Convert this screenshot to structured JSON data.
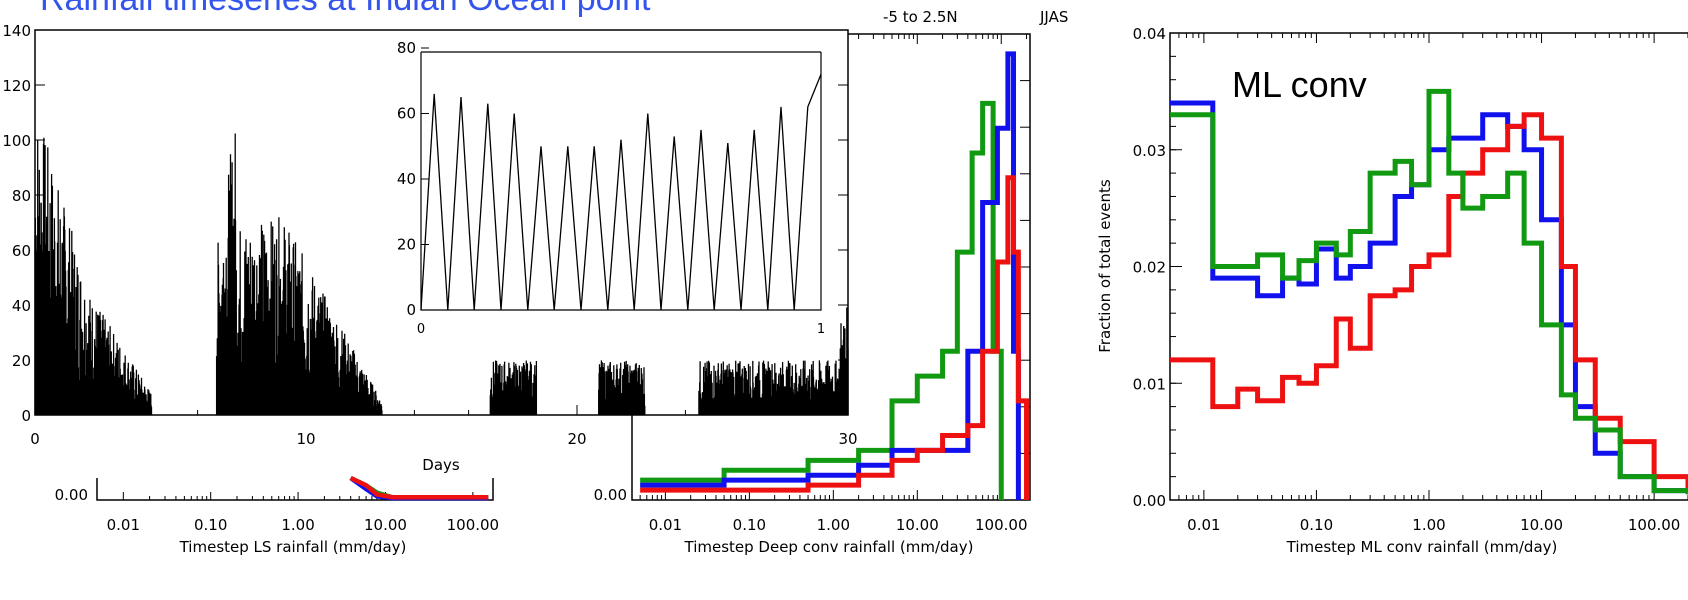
{
  "slide": {
    "title": "Rainfall timeseries at Indian Ocean point",
    "region_label": "-5 to 2.5N",
    "season_label": "JJAS",
    "title_color": "#3355ee"
  },
  "colors": {
    "red": "#ee1111",
    "blue": "#1111ee",
    "green": "#119911",
    "black": "#000000"
  },
  "chart_data": [
    {
      "id": "timeseries",
      "type": "bar",
      "xlabel": "Days",
      "ylabel": "",
      "xlim": [
        0,
        30
      ],
      "ylim": [
        0,
        140
      ],
      "xticks": [
        0,
        10,
        20,
        30
      ],
      "yticks": [
        0,
        20,
        40,
        60,
        80,
        100,
        120,
        140
      ],
      "note": "timestep rainfall, dense vertical spikes",
      "segments": [
        {
          "x0": 0.0,
          "x1": 2.0,
          "y0": 115,
          "y1": 45
        },
        {
          "x0": 2.0,
          "x1": 4.3,
          "y0": 45,
          "y1": 8
        },
        {
          "x0": 6.7,
          "x1": 7.4,
          "y0": 60,
          "y1": 108
        },
        {
          "x0": 7.4,
          "x1": 9.0,
          "y0": 70,
          "y1": 72
        },
        {
          "x0": 9.0,
          "x1": 12.8,
          "y0": 75,
          "y1": 5
        },
        {
          "x0": 16.8,
          "x1": 18.5,
          "y0": 20,
          "y1": 20
        },
        {
          "x0": 20.8,
          "x1": 22.5,
          "y0": 20,
          "y1": 20
        },
        {
          "x0": 24.5,
          "x1": 29.7,
          "y0": 20,
          "y1": 20
        },
        {
          "x0": 29.7,
          "x1": 30.0,
          "y0": 35,
          "y1": 40
        }
      ]
    },
    {
      "id": "inset",
      "type": "line",
      "xlim": [
        0,
        1
      ],
      "ylim": [
        0,
        80
      ],
      "xticks": [
        0,
        1
      ],
      "yticks": [
        0,
        20,
        40,
        60,
        80
      ],
      "x": [
        0,
        0.033,
        0.067,
        0.1,
        0.133,
        0.167,
        0.2,
        0.233,
        0.267,
        0.3,
        0.333,
        0.367,
        0.4,
        0.433,
        0.467,
        0.5,
        0.533,
        0.567,
        0.6,
        0.633,
        0.667,
        0.7,
        0.733,
        0.767,
        0.8,
        0.833,
        0.867,
        0.9,
        0.933,
        0.967,
        1.0
      ],
      "y": [
        0,
        66,
        0,
        65,
        0,
        63,
        0,
        60,
        0,
        50,
        0,
        50,
        0,
        50,
        0,
        52,
        0,
        60,
        0,
        53,
        0,
        55,
        0,
        51,
        0,
        55,
        0,
        62,
        0,
        62,
        72
      ]
    },
    {
      "id": "ls_hist",
      "type": "line",
      "xlabel": "Timestep LS rainfall (mm/day)",
      "xscale": "log",
      "xticks": [
        0.01,
        0.1,
        1,
        10,
        100
      ],
      "xticklabels": [
        "0.01",
        "0.10",
        "1.00",
        "10.00",
        "100.00"
      ],
      "yticks": [
        0.0
      ],
      "yticklabels": [
        "0.00"
      ],
      "ylim": [
        0,
        0.04
      ],
      "series": [
        {
          "color": "red",
          "x": [
            4,
            6,
            8,
            12,
            20,
            50,
            120,
            150
          ],
          "y": [
            0.012,
            0.008,
            0.003,
            0.0015,
            0.0015,
            0.0015,
            0.0015,
            0.0015
          ]
        },
        {
          "color": "blue",
          "x": [
            4,
            6,
            8,
            12,
            20,
            50,
            120,
            150
          ],
          "y": [
            0.012,
            0.006,
            0.002,
            0.001,
            0.001,
            0.001,
            0.001,
            0.001
          ]
        },
        {
          "color": "green",
          "x": [
            4,
            6,
            8,
            12,
            20,
            50,
            120,
            150
          ],
          "y": [
            0.012,
            0.008,
            0.004,
            0.0015,
            0.0015,
            0.0015,
            0.0015,
            0.0015
          ]
        }
      ]
    },
    {
      "id": "deep_hist",
      "type": "line",
      "xlabel": "Timestep Deep conv rainfall (mm/day)",
      "xscale": "log",
      "xticks": [
        0.01,
        0.1,
        1,
        10,
        100
      ],
      "xticklabels": [
        "0.01",
        "0.10",
        "1.00",
        "10.00",
        "100.00"
      ],
      "yticks": [
        0.0
      ],
      "yticklabels": [
        "0.00"
      ],
      "ylim": [
        0,
        0.1
      ],
      "series": [
        {
          "color": "red",
          "x": [
            0.005,
            0.05,
            0.5,
            2,
            5,
            10,
            20,
            40,
            60,
            90,
            120,
            140,
            160,
            200
          ],
          "y": [
            0.002,
            0.002,
            0.003,
            0.005,
            0.008,
            0.01,
            0.013,
            0.015,
            0.03,
            0.048,
            0.065,
            0.05,
            0.02,
            0.0
          ]
        },
        {
          "color": "blue",
          "x": [
            0.005,
            0.05,
            0.5,
            2,
            5,
            10,
            20,
            40,
            60,
            90,
            120,
            140,
            160
          ],
          "y": [
            0.003,
            0.004,
            0.005,
            0.007,
            0.01,
            0.01,
            0.01,
            0.03,
            0.06,
            0.075,
            0.09,
            0.03,
            0.0
          ]
        },
        {
          "color": "green",
          "x": [
            0.005,
            0.05,
            0.5,
            2,
            5,
            10,
            20,
            30,
            45,
            60,
            80,
            100
          ],
          "y": [
            0.004,
            0.006,
            0.008,
            0.01,
            0.02,
            0.025,
            0.03,
            0.05,
            0.07,
            0.08,
            0.03,
            0.0
          ]
        }
      ]
    },
    {
      "id": "ml_hist",
      "type": "line",
      "annotation": "ML conv",
      "xlabel": "Timestep ML conv rainfall (mm/day)",
      "ylabel": "Fraction of total events",
      "xscale": "log",
      "xlim": [
        0.005,
        200
      ],
      "ylim": [
        0,
        0.04
      ],
      "xticks": [
        0.01,
        0.1,
        1,
        10,
        100
      ],
      "xticklabels": [
        "0.01",
        "0.10",
        "1.00",
        "10.00",
        "100.00"
      ],
      "yticks": [
        0.0,
        0.01,
        0.02,
        0.03,
        0.04
      ],
      "yticklabels": [
        "0.00",
        "0.01",
        "0.02",
        "0.03",
        "0.04"
      ],
      "series": [
        {
          "color": "red",
          "x": [
            0.005,
            0.01,
            0.012,
            0.02,
            0.03,
            0.05,
            0.07,
            0.1,
            0.15,
            0.2,
            0.3,
            0.5,
            0.7,
            1.0,
            1.5,
            2,
            3,
            5,
            7,
            10,
            15,
            20,
            30,
            50,
            100,
            200
          ],
          "y": [
            0.012,
            0.012,
            0.008,
            0.0095,
            0.0085,
            0.0105,
            0.01,
            0.0115,
            0.0155,
            0.013,
            0.0175,
            0.018,
            0.02,
            0.021,
            0.026,
            0.028,
            0.03,
            0.032,
            0.033,
            0.031,
            0.02,
            0.012,
            0.007,
            0.005,
            0.002,
            0.0005
          ]
        },
        {
          "color": "blue",
          "x": [
            0.005,
            0.01,
            0.012,
            0.02,
            0.03,
            0.05,
            0.07,
            0.1,
            0.15,
            0.2,
            0.3,
            0.5,
            0.7,
            1.0,
            1.5,
            2,
            3,
            5,
            7,
            10,
            15,
            20,
            30,
            50,
            100,
            200
          ],
          "y": [
            0.034,
            0.034,
            0.019,
            0.019,
            0.0175,
            0.019,
            0.0185,
            0.0215,
            0.019,
            0.02,
            0.022,
            0.026,
            0.027,
            0.03,
            0.031,
            0.031,
            0.033,
            0.032,
            0.03,
            0.024,
            0.015,
            0.008,
            0.004,
            0.002,
            0.0008,
            0.0005
          ]
        },
        {
          "color": "green",
          "x": [
            0.005,
            0.01,
            0.012,
            0.02,
            0.03,
            0.05,
            0.07,
            0.1,
            0.15,
            0.2,
            0.3,
            0.5,
            0.7,
            1.0,
            1.5,
            2,
            3,
            5,
            7,
            10,
            15,
            20,
            30,
            50,
            100,
            200
          ],
          "y": [
            0.033,
            0.033,
            0.02,
            0.02,
            0.021,
            0.019,
            0.0205,
            0.022,
            0.021,
            0.023,
            0.028,
            0.029,
            0.027,
            0.035,
            0.028,
            0.025,
            0.026,
            0.028,
            0.022,
            0.015,
            0.009,
            0.007,
            0.006,
            0.002,
            0.0008,
            0.0005
          ]
        }
      ]
    }
  ]
}
